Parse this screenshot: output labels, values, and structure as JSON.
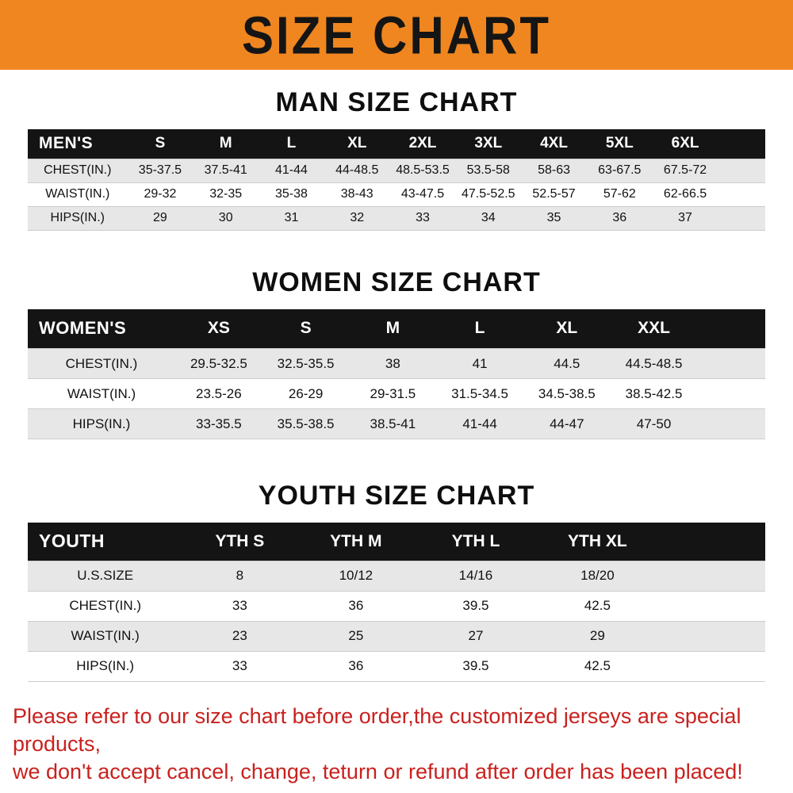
{
  "banner": {
    "title": "SIZE CHART"
  },
  "chart_data": [
    {
      "type": "table",
      "title": "MAN SIZE CHART",
      "header": [
        "MEN'S",
        "S",
        "M",
        "L",
        "XL",
        "2XL",
        "3XL",
        "4XL",
        "5XL",
        "6XL"
      ],
      "rows": [
        [
          "CHEST(IN.)",
          "35-37.5",
          "37.5-41",
          "41-44",
          "44-48.5",
          "48.5-53.5",
          "53.5-58",
          "58-63",
          "63-67.5",
          "67.5-72"
        ],
        [
          "WAIST(IN.)",
          "29-32",
          "32-35",
          "35-38",
          "38-43",
          "43-47.5",
          "47.5-52.5",
          "52.5-57",
          "57-62",
          "62-66.5"
        ],
        [
          "HIPS(IN.)",
          "29",
          "30",
          "31",
          "32",
          "33",
          "34",
          "35",
          "36",
          "37"
        ]
      ]
    },
    {
      "type": "table",
      "title": "WOMEN SIZE CHART",
      "header": [
        "WOMEN'S",
        "XS",
        "S",
        "M",
        "L",
        "XL",
        "XXL"
      ],
      "rows": [
        [
          "CHEST(IN.)",
          "29.5-32.5",
          "32.5-35.5",
          "38",
          "41",
          "44.5",
          "44.5-48.5"
        ],
        [
          "WAIST(IN.)",
          "23.5-26",
          "26-29",
          "29-31.5",
          "31.5-34.5",
          "34.5-38.5",
          "38.5-42.5"
        ],
        [
          "HIPS(IN.)",
          "33-35.5",
          "35.5-38.5",
          "38.5-41",
          "41-44",
          "44-47",
          "47-50"
        ]
      ]
    },
    {
      "type": "table",
      "title": "YOUTH SIZE CHART",
      "header": [
        "YOUTH",
        "YTH S",
        "YTH M",
        "YTH L",
        "YTH XL"
      ],
      "rows": [
        [
          "U.S.SIZE",
          "8",
          "10/12",
          "14/16",
          "18/20"
        ],
        [
          "CHEST(IN.)",
          "33",
          "36",
          "39.5",
          "42.5"
        ],
        [
          "WAIST(IN.)",
          "23",
          "25",
          "27",
          "29"
        ],
        [
          "HIPS(IN.)",
          "33",
          "36",
          "39.5",
          "42.5"
        ]
      ]
    }
  ],
  "footer": {
    "line1": "Please refer to our size chart before order,the customized jerseys are special products,",
    "line2": "we don't accept cancel, change, teturn or refund after order has been placed!"
  },
  "colors": {
    "banner_bg": "#f0861f",
    "header_bg": "#141414",
    "row_alt_bg": "#e7e7e7",
    "footer_red": "#c9211e"
  }
}
